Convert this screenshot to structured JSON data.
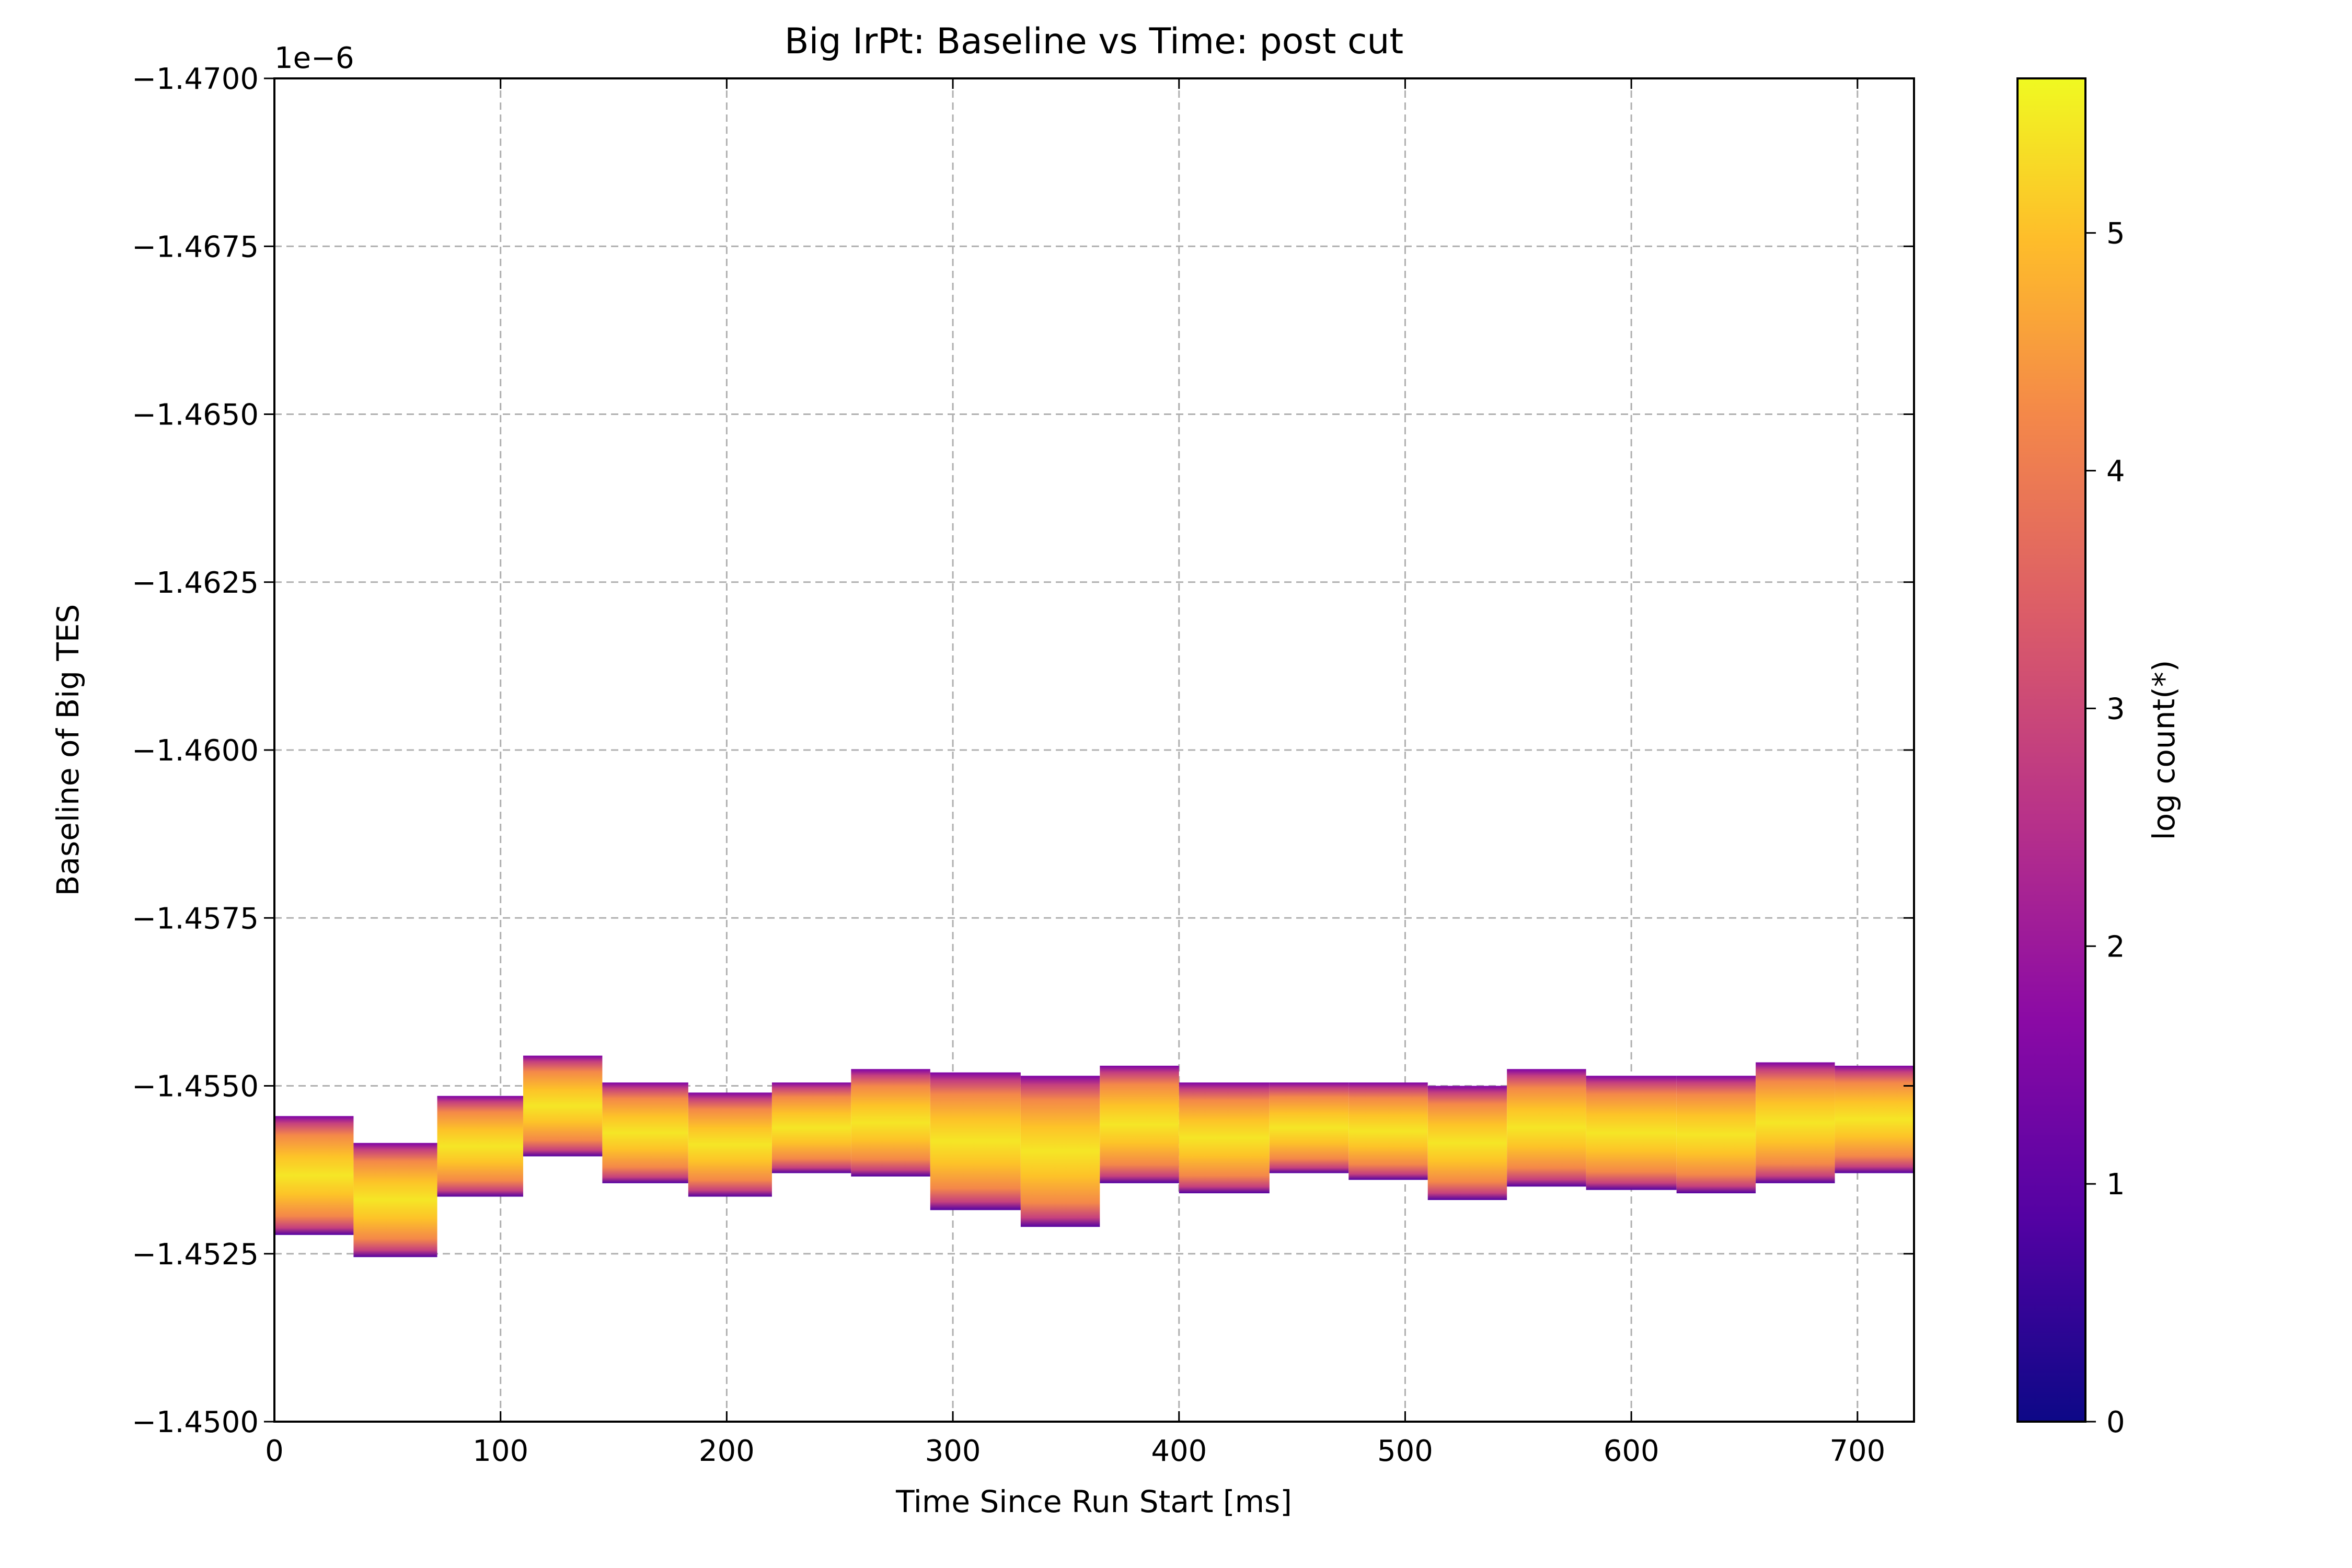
{
  "chart_data": {
    "type": "heatmap",
    "title": "Big IrPt: Baseline vs Time: post cut",
    "xlabel": "Time Since Run Start [ms]",
    "ylabel": "Baseline of Big TES",
    "y_offset_label": "1e−6",
    "xlim": [
      0,
      725
    ],
    "ylim": [
      -1.45,
      -1.47
    ],
    "y_scale_factor": "1e-6",
    "x_ticks": [
      0,
      100,
      200,
      300,
      400,
      500,
      600,
      700
    ],
    "x_tick_labels": [
      "0",
      "100",
      "200",
      "300",
      "400",
      "500",
      "600",
      "700"
    ],
    "y_ticks": [
      -1.47,
      -1.4675,
      -1.465,
      -1.4625,
      -1.46,
      -1.4575,
      -1.455,
      -1.4525,
      -1.45
    ],
    "y_tick_labels": [
      "−1.4700",
      "−1.4675",
      "−1.4650",
      "−1.4625",
      "−1.4600",
      "−1.4575",
      "−1.4550",
      "−1.4525",
      "−1.4500"
    ],
    "grid": true,
    "colorbar": {
      "label": "log count(*)",
      "range": [
        0,
        5.65
      ],
      "ticks": [
        0,
        1,
        2,
        3,
        4,
        5
      ],
      "tick_labels": [
        "0",
        "1",
        "2",
        "3",
        "4",
        "5"
      ],
      "colormap": "plasma"
    },
    "band_segments": [
      {
        "x0": 0,
        "x1": 35,
        "top": -1.45455,
        "bottom": -1.45278
      },
      {
        "x0": 35,
        "x1": 72,
        "top": -1.45415,
        "bottom": -1.45245
      },
      {
        "x0": 72,
        "x1": 110,
        "top": -1.45485,
        "bottom": -1.45335
      },
      {
        "x0": 110,
        "x1": 145,
        "top": -1.45545,
        "bottom": -1.45395
      },
      {
        "x0": 145,
        "x1": 183,
        "top": -1.45505,
        "bottom": -1.45355
      },
      {
        "x0": 183,
        "x1": 220,
        "top": -1.4549,
        "bottom": -1.45335
      },
      {
        "x0": 220,
        "x1": 255,
        "top": -1.45505,
        "bottom": -1.4537
      },
      {
        "x0": 255,
        "x1": 290,
        "top": -1.45525,
        "bottom": -1.45365
      },
      {
        "x0": 290,
        "x1": 330,
        "top": -1.4552,
        "bottom": -1.45315
      },
      {
        "x0": 330,
        "x1": 365,
        "top": -1.45515,
        "bottom": -1.4529
      },
      {
        "x0": 365,
        "x1": 400,
        "top": -1.4553,
        "bottom": -1.45355
      },
      {
        "x0": 400,
        "x1": 440,
        "top": -1.45505,
        "bottom": -1.4534
      },
      {
        "x0": 440,
        "x1": 475,
        "top": -1.45505,
        "bottom": -1.4537
      },
      {
        "x0": 475,
        "x1": 510,
        "top": -1.45505,
        "bottom": -1.4536
      },
      {
        "x0": 510,
        "x1": 545,
        "top": -1.455,
        "bottom": -1.4533
      },
      {
        "x0": 545,
        "x1": 580,
        "top": -1.45525,
        "bottom": -1.4535
      },
      {
        "x0": 580,
        "x1": 620,
        "top": -1.45515,
        "bottom": -1.45345
      },
      {
        "x0": 620,
        "x1": 655,
        "top": -1.45515,
        "bottom": -1.4534
      },
      {
        "x0": 655,
        "x1": 690,
        "top": -1.45535,
        "bottom": -1.45355
      },
      {
        "x0": 690,
        "x1": 725,
        "top": -1.4553,
        "bottom": -1.4537
      }
    ]
  }
}
